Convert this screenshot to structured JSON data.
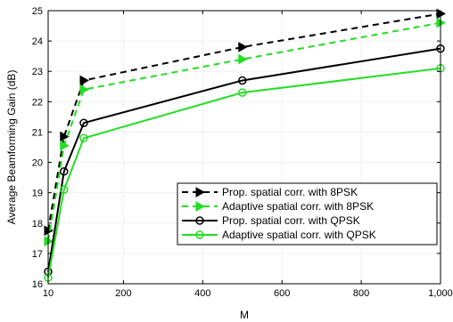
{
  "chart_data": {
    "type": "line",
    "title": "",
    "xlabel": "M",
    "ylabel": "Average Beamforming Gain (dB)",
    "xlim": [
      10,
      1000
    ],
    "ylim": [
      16,
      25
    ],
    "xticks": [
      10,
      200,
      400,
      600,
      800,
      1000
    ],
    "xtick_labels": [
      "10",
      "200",
      "400",
      "600",
      "800",
      "1,000"
    ],
    "yticks": [
      16,
      17,
      18,
      19,
      20,
      21,
      22,
      23,
      24,
      25
    ],
    "ytick_labels": [
      "16",
      "17",
      "18",
      "19",
      "20",
      "21",
      "22",
      "23",
      "24",
      "25"
    ],
    "grid": true,
    "legend_position": "center-right",
    "x": [
      10,
      50,
      100,
      500,
      1000
    ],
    "series": [
      {
        "name": "Prop. spatial corr. with 8PSK",
        "values": [
          17.75,
          20.85,
          22.7,
          23.8,
          24.9
        ],
        "color": "#000000",
        "line_style": "dashed",
        "marker": "triangle-right"
      },
      {
        "name": "Adaptive spatial corr. with 8PSK",
        "values": [
          17.4,
          20.55,
          22.4,
          23.4,
          24.6
        ],
        "color": "#22dd22",
        "line_style": "dashed",
        "marker": "triangle-right"
      },
      {
        "name": "Prop. spatial corr. with QPSK",
        "values": [
          16.4,
          19.7,
          21.3,
          22.7,
          23.75
        ],
        "color": "#000000",
        "line_style": "solid",
        "marker": "circle"
      },
      {
        "name": "Adaptive spatial corr. with QPSK",
        "values": [
          16.2,
          19.1,
          20.8,
          22.3,
          23.1
        ],
        "color": "#22dd22",
        "line_style": "solid",
        "marker": "circle"
      }
    ]
  }
}
